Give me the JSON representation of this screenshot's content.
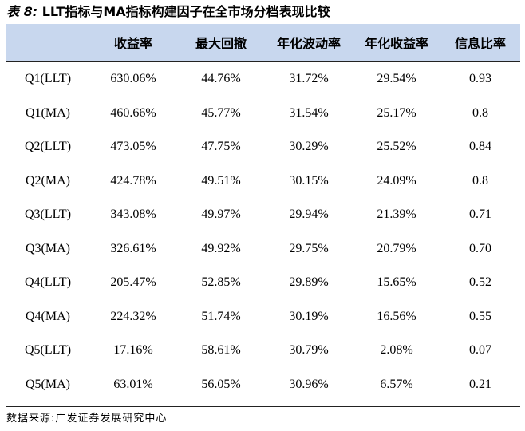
{
  "title": {
    "prefix": "表 8:",
    "text": "LLT指标与MA指标构建因子在全市场分档表现比较"
  },
  "table": {
    "headers": [
      "",
      "收益率",
      "最大回撤",
      "年化波动率",
      "年化收益率",
      "信息比率"
    ],
    "rows": [
      [
        "Q1(LLT)",
        "630.06%",
        "44.76%",
        "31.72%",
        "29.54%",
        "0.93"
      ],
      [
        "Q1(MA)",
        "460.66%",
        "45.77%",
        "31.54%",
        "25.17%",
        "0.8"
      ],
      [
        "Q2(LLT)",
        "473.05%",
        "47.75%",
        "30.29%",
        "25.52%",
        "0.84"
      ],
      [
        "Q2(MA)",
        "424.78%",
        "49.51%",
        "30.15%",
        "24.09%",
        "0.8"
      ],
      [
        "Q3(LLT)",
        "343.08%",
        "49.97%",
        "29.94%",
        "21.39%",
        "0.71"
      ],
      [
        "Q3(MA)",
        "326.61%",
        "49.92%",
        "29.75%",
        "20.79%",
        "0.70"
      ],
      [
        "Q4(LLT)",
        "205.47%",
        "52.85%",
        "29.89%",
        "15.65%",
        "0.52"
      ],
      [
        "Q4(MA)",
        "224.32%",
        "51.74%",
        "30.19%",
        "16.56%",
        "0.55"
      ],
      [
        "Q5(LLT)",
        "17.16%",
        "58.61%",
        "30.79%",
        "2.08%",
        "0.07"
      ],
      [
        "Q5(MA)",
        "63.01%",
        "56.05%",
        "30.96%",
        "6.57%",
        "0.21"
      ]
    ]
  },
  "source": "数据来源:广发证券发展研究中心",
  "colors": {
    "header_bg": "#c8d7ee",
    "rule": "#222222"
  }
}
